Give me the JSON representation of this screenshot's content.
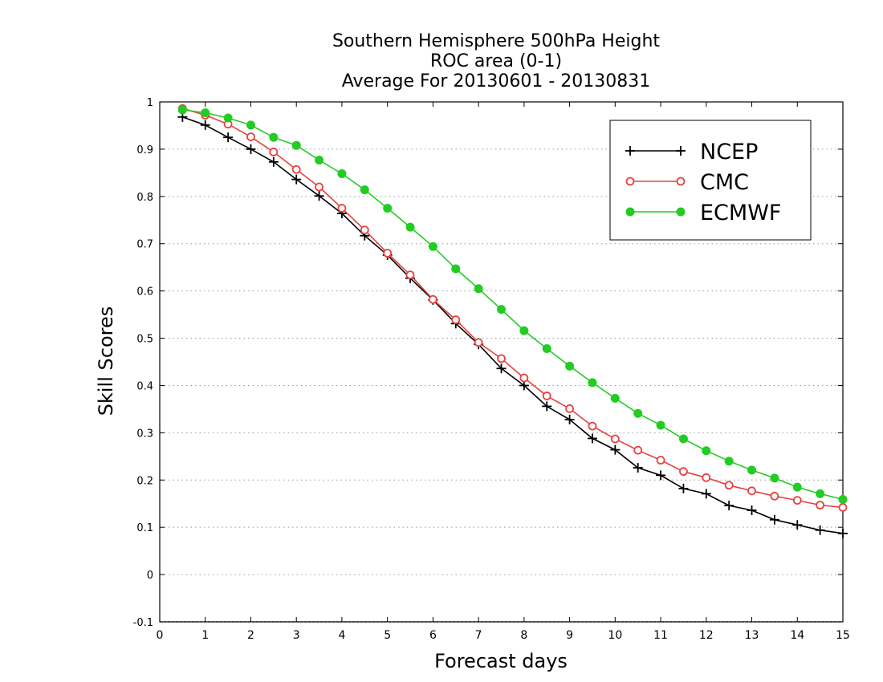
{
  "chart_data": {
    "type": "line",
    "title": [
      "Southern Hemisphere 500hPa Height",
      "ROC area (0-1)",
      "Average For 20130601 - 20130831"
    ],
    "xlabel": "Forecast days",
    "ylabel": "Skill Scores",
    "xlim": [
      0,
      15
    ],
    "ylim": [
      -0.1,
      1
    ],
    "x_ticks": [
      "0",
      "1",
      "2",
      "3",
      "4",
      "5",
      "6",
      "7",
      "8",
      "9",
      "10",
      "11",
      "12",
      "13",
      "14",
      "15"
    ],
    "y_ticks": [
      "-0.1",
      "0",
      "0.1",
      "0.2",
      "0.3",
      "0.4",
      "0.5",
      "0.6",
      "0.7",
      "0.8",
      "0.9",
      "1"
    ],
    "grid": "horizontal dotted",
    "legend_position": "top-right",
    "x": [
      0.5,
      1,
      1.5,
      2,
      2.5,
      3,
      3.5,
      4,
      4.5,
      5,
      5.5,
      6,
      6.5,
      7,
      7.5,
      8,
      8.5,
      9,
      9.5,
      10,
      10.5,
      11,
      11.5,
      12,
      12.5,
      13,
      13.5,
      14,
      14.5,
      15
    ],
    "series": [
      {
        "name": "NCEP",
        "color": "#000000",
        "marker": "plus",
        "values": [
          0.968,
          0.951,
          0.925,
          0.9,
          0.873,
          0.836,
          0.801,
          0.764,
          0.717,
          0.676,
          0.627,
          0.581,
          0.531,
          0.487,
          0.436,
          0.4,
          0.356,
          0.328,
          0.288,
          0.264,
          0.226,
          0.21,
          0.182,
          0.171,
          0.146,
          0.136,
          0.116,
          0.105,
          0.094,
          0.087
        ]
      },
      {
        "name": "CMC",
        "color": "#e84040",
        "marker": "open-circle",
        "values": [
          0.986,
          0.972,
          0.953,
          0.926,
          0.894,
          0.857,
          0.82,
          0.775,
          0.729,
          0.68,
          0.634,
          0.582,
          0.539,
          0.491,
          0.457,
          0.416,
          0.378,
          0.351,
          0.314,
          0.287,
          0.263,
          0.242,
          0.218,
          0.205,
          0.189,
          0.177,
          0.166,
          0.157,
          0.147,
          0.142
        ]
      },
      {
        "name": "ECMWF",
        "color": "#22cc22",
        "marker": "filled-circle",
        "values": [
          0.983,
          0.977,
          0.966,
          0.951,
          0.925,
          0.908,
          0.877,
          0.848,
          0.814,
          0.775,
          0.735,
          0.694,
          0.647,
          0.605,
          0.561,
          0.516,
          0.478,
          0.441,
          0.406,
          0.373,
          0.341,
          0.316,
          0.287,
          0.262,
          0.24,
          0.221,
          0.204,
          0.185,
          0.171,
          0.159
        ]
      }
    ]
  }
}
